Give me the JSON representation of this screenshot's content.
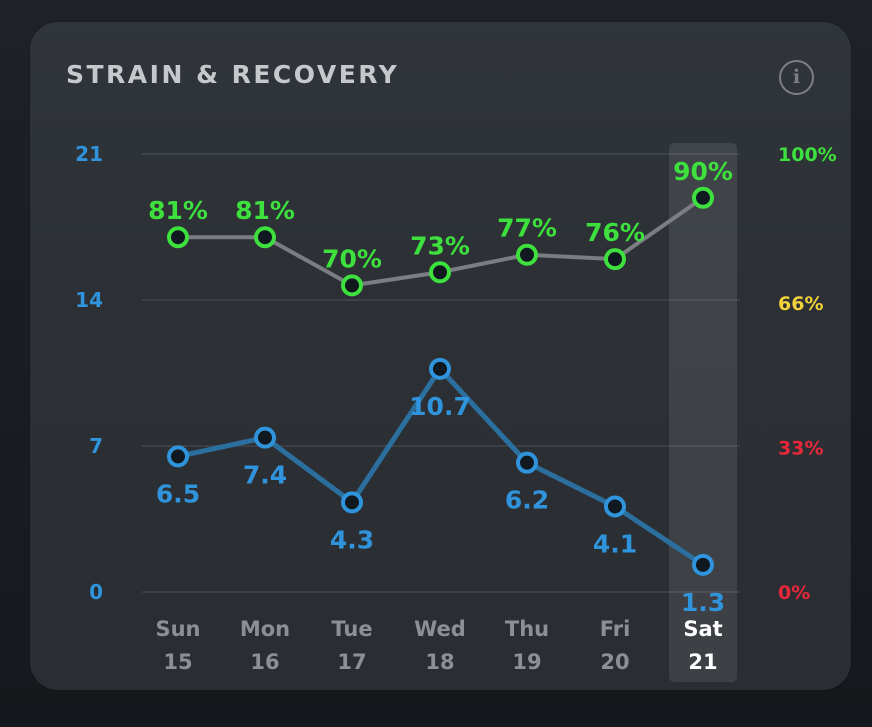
{
  "card": {
    "title": "STRAIN & RECOVERY",
    "info_icon": "info-icon",
    "info_glyph": "i"
  },
  "colors": {
    "strain": "#2f94db",
    "strain_line": "#2a6f9e",
    "recovery": "#3de03d",
    "recovery_line": "#7a7e83",
    "recovery_high": "#3de03d",
    "recovery_mid": "#f0d13a",
    "recovery_low": "#e8283a",
    "axis_label": "#8c9096",
    "selected_label": "#ffffff"
  },
  "chart_data": {
    "type": "line",
    "title": "STRAIN & RECOVERY",
    "categories": [
      "Sun 15",
      "Mon 16",
      "Tue 17",
      "Wed 18",
      "Thu 19",
      "Fri 20",
      "Sat 21"
    ],
    "x_days": [
      "Sun",
      "Mon",
      "Tue",
      "Wed",
      "Thu",
      "Fri",
      "Sat"
    ],
    "x_dates": [
      "15",
      "16",
      "17",
      "18",
      "19",
      "20",
      "21"
    ],
    "selected_index": 6,
    "series": [
      {
        "name": "Recovery",
        "axis": "right",
        "unit": "%",
        "values": [
          81,
          81,
          70,
          73,
          77,
          76,
          90
        ],
        "labels": [
          "81%",
          "81%",
          "70%",
          "73%",
          "77%",
          "76%",
          "90%"
        ]
      },
      {
        "name": "Strain",
        "axis": "left",
        "values": [
          6.5,
          7.4,
          4.3,
          10.7,
          6.2,
          4.1,
          1.3
        ],
        "labels": [
          "6.5",
          "7.4",
          "4.3",
          "10.7",
          "6.2",
          "4.1",
          "1.3"
        ]
      }
    ],
    "y_left": {
      "range": [
        0,
        21
      ],
      "ticks": [
        21,
        14,
        7,
        0
      ],
      "tick_labels": [
        "21",
        "14",
        "7",
        "0"
      ]
    },
    "y_right": {
      "range": [
        0,
        100
      ],
      "ticks": [
        100,
        66,
        33,
        0
      ],
      "tick_labels": [
        "100%",
        "66%",
        "33%",
        "0%"
      ],
      "tick_colors": [
        "#3de03d",
        "#f0d13a",
        "#e8283a",
        "#e8283a"
      ]
    },
    "grid": true,
    "legend": "none"
  }
}
